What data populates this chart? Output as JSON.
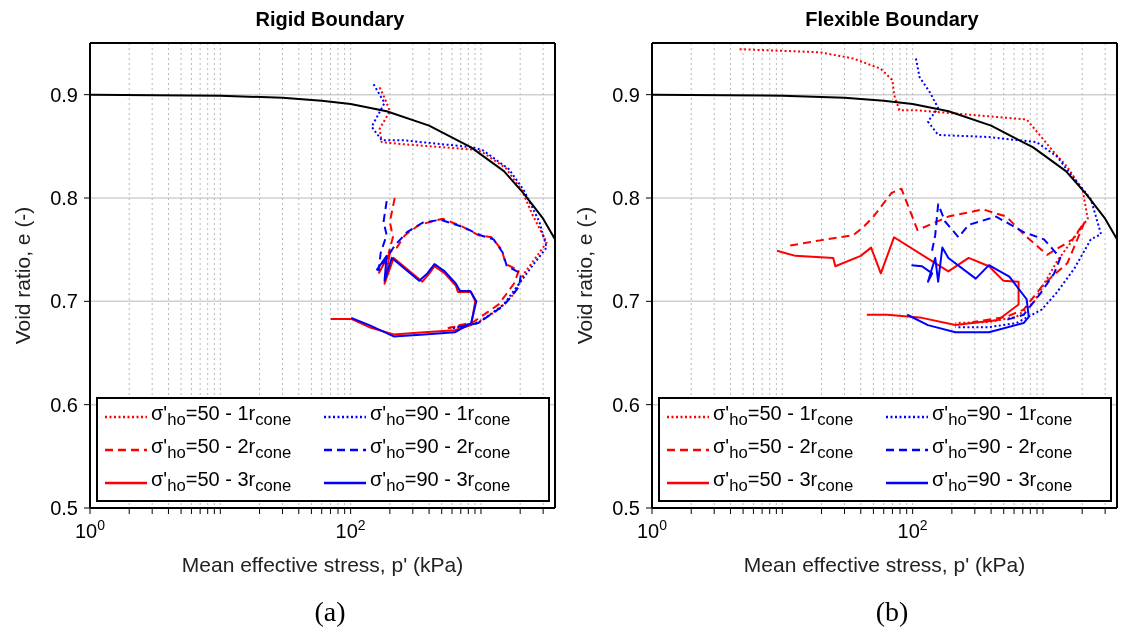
{
  "chart_data": [
    {
      "type": "line",
      "title": "Rigid Boundary",
      "xlabel": "Mean effective stress, p' (kPa)",
      "ylabel": "Void ratio, e (-)",
      "annotations": [
        "(a)"
      ],
      "log": "x",
      "grid": true,
      "legend": "bottom",
      "xlim": [
        1,
        3700
      ],
      "ylim": [
        0.5,
        0.95
      ],
      "xticks": [
        {
          "value": 1,
          "label": "10$^{0}$"
        },
        {
          "value": 2,
          "label": null
        },
        {
          "value": 3,
          "label": null
        },
        {
          "value": 4,
          "label": null
        },
        {
          "value": 5,
          "label": null
        },
        {
          "value": 6,
          "label": null
        },
        {
          "value": 7,
          "label": null
        },
        {
          "value": 8,
          "label": null
        },
        {
          "value": 9,
          "label": null
        },
        {
          "value": 10,
          "label": null
        },
        {
          "value": 20,
          "label": null
        },
        {
          "value": 30,
          "label": null
        },
        {
          "value": 40,
          "label": null
        },
        {
          "value": 50,
          "label": null
        },
        {
          "value": 60,
          "label": null
        },
        {
          "value": 70,
          "label": null
        },
        {
          "value": 80,
          "label": null
        },
        {
          "value": 90,
          "label": null
        },
        {
          "value": 100,
          "label": "10$^{2}$"
        },
        {
          "value": 200,
          "label": null
        },
        {
          "value": 300,
          "label": null
        },
        {
          "value": 400,
          "label": null
        },
        {
          "value": 500,
          "label": null
        },
        {
          "value": 600,
          "label": null
        },
        {
          "value": 700,
          "label": null
        },
        {
          "value": 800,
          "label": null
        },
        {
          "value": 900,
          "label": null
        },
        {
          "value": 1000,
          "label": null
        },
        {
          "value": 2000,
          "label": null
        },
        {
          "value": 3000,
          "label": null
        }
      ],
      "yticks": [
        0.5,
        0.6,
        0.7,
        0.8,
        0.9
      ],
      "series": [
        {
          "name": "σ'$_{ho}$=50 - 1r$_{cone}$",
          "color": "#ff0000",
          "line_style": "dotted",
          "x": [
            167,
            182,
            200,
            167,
            173,
            257,
            841,
            1007,
            1550,
            2070,
            2480,
            3190,
            2806,
            2145,
            1790,
            1370,
            955,
            556
          ],
          "values": [
            0.907,
            0.897,
            0.884,
            0.867,
            0.854,
            0.852,
            0.847,
            0.845,
            0.829,
            0.807,
            0.784,
            0.757,
            0.747,
            0.727,
            0.707,
            0.692,
            0.68,
            0.674
          ]
        },
        {
          "name": "σ'$_{ho}$=50 - 2r$_{cone}$",
          "color": "#ff0000",
          "line_style": "dashed",
          "x": [
            218,
            200,
            211,
            196,
            226,
            261,
            336,
            508,
            728,
            955,
            1205,
            1443,
            1550,
            1960,
            1790,
            1367,
            873,
            556
          ],
          "values": [
            0.8,
            0.777,
            0.762,
            0.747,
            0.752,
            0.764,
            0.774,
            0.78,
            0.772,
            0.764,
            0.762,
            0.75,
            0.736,
            0.73,
            0.717,
            0.697,
            0.68,
            0.674
          ]
        },
        {
          "name": "σ'$_{ho}$=50 - 3r$_{cone}$",
          "color": "#ff0000",
          "line_style": "solid",
          "x": [
            70.5,
            101,
            139,
            214,
            367,
            630,
            841,
            904,
            841,
            666,
            643,
            527,
            440,
            402,
            355,
            214,
            182,
            200,
            164
          ],
          "values": [
            0.683,
            0.683,
            0.675,
            0.668,
            0.67,
            0.672,
            0.677,
            0.7,
            0.709,
            0.709,
            0.715,
            0.727,
            0.734,
            0.727,
            0.719,
            0.742,
            0.717,
            0.747,
            0.727
          ]
        },
        {
          "name": "σ'$_{ho}$=90 - 1r$_{cone}$",
          "color": "#0000ff",
          "line_style": "dotted",
          "x": [
            150,
            182,
            145,
            155,
            173,
            248,
            873,
            1040,
            1637,
            2145,
            2806,
            3190,
            2570,
            1960,
            1497,
            955,
            610
          ],
          "values": [
            0.91,
            0.892,
            0.869,
            0.864,
            0.856,
            0.856,
            0.849,
            0.846,
            0.828,
            0.807,
            0.777,
            0.752,
            0.737,
            0.717,
            0.697,
            0.679,
            0.674
          ]
        },
        {
          "name": "σ'$_{ho}$=90 - 2r$_{cone}$",
          "color": "#0000ff",
          "line_style": "dashed",
          "x": [
            189,
            179,
            189,
            170,
            164,
            218,
            271,
            355,
            490,
            728,
            989,
            1250,
            1470,
            1580,
            2030,
            1960,
            1497,
            955,
            609
          ],
          "values": [
            0.797,
            0.777,
            0.764,
            0.747,
            0.73,
            0.754,
            0.767,
            0.776,
            0.779,
            0.772,
            0.764,
            0.76,
            0.747,
            0.734,
            0.727,
            0.714,
            0.696,
            0.679,
            0.674
          ]
        },
        {
          "name": "σ'$_{ho}$=90 - 3r$_{cone}$",
          "color": "#0000ff",
          "line_style": "solid",
          "x": [
            101,
            139,
            214,
            367,
            630,
            841,
            921,
            827,
            690,
            643,
            527,
            440,
            388,
            336,
            207,
            182,
            189,
            158
          ],
          "values": [
            0.684,
            0.677,
            0.666,
            0.668,
            0.67,
            0.679,
            0.7,
            0.71,
            0.71,
            0.717,
            0.729,
            0.736,
            0.727,
            0.72,
            0.742,
            0.72,
            0.744,
            0.73
          ]
        },
        {
          "color": "#000000",
          "line_style": "solid",
          "x": [
            1,
            10,
            30,
            60,
            100,
            189,
            400,
            841,
            1500,
            2140,
            3000,
            3700
          ],
          "values": [
            0.9,
            0.899,
            0.897,
            0.894,
            0.891,
            0.884,
            0.87,
            0.849,
            0.826,
            0.804,
            0.78,
            0.76
          ]
        }
      ]
    },
    {
      "type": "line",
      "title": "Flexible Boundary",
      "xlabel": "Mean effective stress, p' (kPa)",
      "ylabel": "Void ratio, e (-)",
      "annotations": [
        "(b)"
      ],
      "log": "x",
      "grid": true,
      "legend": "bottom",
      "xlim": [
        1,
        3700
      ],
      "ylim": [
        0.5,
        0.95
      ],
      "xticks": [
        {
          "value": 1,
          "label": "10$^{0}$"
        },
        {
          "value": 2,
          "label": null
        },
        {
          "value": 3,
          "label": null
        },
        {
          "value": 4,
          "label": null
        },
        {
          "value": 5,
          "label": null
        },
        {
          "value": 6,
          "label": null
        },
        {
          "value": 7,
          "label": null
        },
        {
          "value": 8,
          "label": null
        },
        {
          "value": 9,
          "label": null
        },
        {
          "value": 10,
          "label": null
        },
        {
          "value": 20,
          "label": null
        },
        {
          "value": 30,
          "label": null
        },
        {
          "value": 40,
          "label": null
        },
        {
          "value": 50,
          "label": null
        },
        {
          "value": 60,
          "label": null
        },
        {
          "value": 70,
          "label": null
        },
        {
          "value": 80,
          "label": null
        },
        {
          "value": 90,
          "label": null
        },
        {
          "value": 100,
          "label": "10$^{2}$"
        },
        {
          "value": 200,
          "label": null
        },
        {
          "value": 300,
          "label": null
        },
        {
          "value": 400,
          "label": null
        },
        {
          "value": 500,
          "label": null
        },
        {
          "value": 600,
          "label": null
        },
        {
          "value": 700,
          "label": null
        },
        {
          "value": 800,
          "label": null
        },
        {
          "value": 900,
          "label": null
        },
        {
          "value": 1000,
          "label": null
        },
        {
          "value": 2000,
          "label": null
        },
        {
          "value": 3000,
          "label": null
        }
      ],
      "yticks": [
        0.5,
        0.6,
        0.7,
        0.8,
        0.9
      ],
      "series": [
        {
          "name": "σ'$_{ho}$=50 - 1r$_{cone}$",
          "color": "#ff0000",
          "line_style": "dotted",
          "x": [
            4.7,
            19.5,
            35,
            57,
            70,
            72,
            79,
            104,
            750,
            1220,
            1540,
            2020,
            2207,
            1746,
            1286,
            1075,
            851,
            626,
            385,
            213
          ],
          "values": [
            0.944,
            0.941,
            0.935,
            0.925,
            0.914,
            0.9,
            0.885,
            0.885,
            0.876,
            0.844,
            0.83,
            0.807,
            0.78,
            0.762,
            0.739,
            0.722,
            0.699,
            0.685,
            0.68,
            0.679
          ]
        },
        {
          "name": "σ'$_{ho}$=50 - 2r$_{cone}$",
          "color": "#ff0000",
          "line_style": "dashed",
          "x": [
            11.5,
            19.5,
            35,
            42,
            50,
            69,
            82,
            109,
            188,
            346,
            524,
            711,
            1075,
            1690,
            2090,
            1540,
            1019,
            711,
            524,
            289
          ],
          "values": [
            0.754,
            0.759,
            0.764,
            0.772,
            0.782,
            0.805,
            0.809,
            0.769,
            0.782,
            0.789,
            0.782,
            0.765,
            0.745,
            0.76,
            0.777,
            0.737,
            0.717,
            0.692,
            0.685,
            0.68
          ]
        },
        {
          "name": "σ'$_{ho}$=50 - 3r$_{cone}$",
          "color": "#ff0000",
          "line_style": "solid",
          "x": [
            44.5,
            64,
            118,
            213,
            453,
            650,
            650,
            496,
            385,
            269,
            188,
            72,
            57,
            48,
            40,
            25.5,
            24.6,
            12.6,
            9.1
          ],
          "values": [
            0.687,
            0.687,
            0.684,
            0.677,
            0.682,
            0.697,
            0.719,
            0.72,
            0.734,
            0.742,
            0.729,
            0.762,
            0.727,
            0.752,
            0.744,
            0.734,
            0.742,
            0.744,
            0.749
          ]
        },
        {
          "name": "σ'$_{ho}$=90 - 1r$_{cone}$",
          "color": "#0000ff",
          "line_style": "dotted",
          "x": [
            106,
            113,
            136,
            157,
            131,
            157,
            385,
            897,
            1286,
            1540,
            2330,
            2790,
            2330,
            1746,
            1286,
            978,
            626,
            385,
            213
          ],
          "values": [
            0.935,
            0.917,
            0.902,
            0.887,
            0.874,
            0.861,
            0.859,
            0.854,
            0.84,
            0.827,
            0.799,
            0.765,
            0.76,
            0.732,
            0.709,
            0.692,
            0.679,
            0.675,
            0.675
          ]
        },
        {
          "name": "σ'$_{ho}$=90 - 2r$_{cone}$",
          "color": "#0000ff",
          "line_style": "dashed",
          "x": [
            141,
            149,
            157,
            178,
            225,
            269,
            437,
            711,
            1019,
            1358,
            1220,
            948,
            711,
            524
          ],
          "values": [
            0.749,
            0.764,
            0.794,
            0.777,
            0.762,
            0.774,
            0.782,
            0.767,
            0.76,
            0.742,
            0.727,
            0.707,
            0.687,
            0.682
          ]
        },
        {
          "name": "σ'$_{ho}$=90 - 3r$_{cone}$",
          "color": "#0000ff",
          "line_style": "solid",
          "x": [
            98,
            118,
            141,
            131,
            149,
            157,
            169,
            188,
            305,
            385,
            552,
            750,
            778,
            711,
            385,
            213,
            131,
            91
          ],
          "values": [
            0.735,
            0.734,
            0.727,
            0.719,
            0.742,
            0.719,
            0.752,
            0.742,
            0.722,
            0.735,
            0.724,
            0.702,
            0.685,
            0.679,
            0.67,
            0.67,
            0.677,
            0.687
          ]
        },
        {
          "color": "#000000",
          "line_style": "solid",
          "x": [
            1,
            10,
            30,
            60,
            100,
            189,
            400,
            841,
            1500,
            2140,
            3000,
            3700
          ],
          "values": [
            0.9,
            0.899,
            0.897,
            0.894,
            0.891,
            0.884,
            0.87,
            0.849,
            0.826,
            0.804,
            0.78,
            0.76
          ]
        }
      ]
    }
  ]
}
